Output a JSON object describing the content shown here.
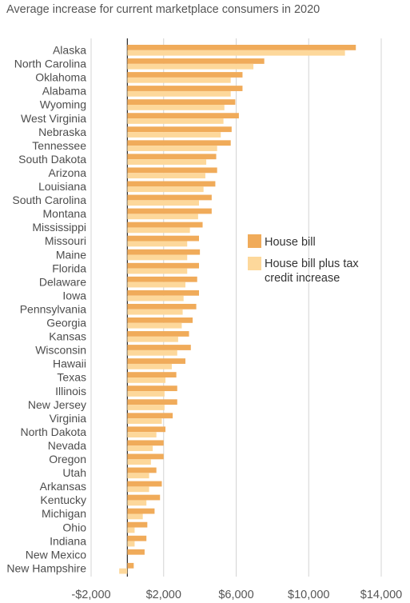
{
  "chart_data": {
    "type": "bar",
    "orientation": "horizontal",
    "title": "Average increase for current marketplace consumers in 2020",
    "xlabel": "",
    "ylabel": "",
    "xlim": [
      -2000,
      14000
    ],
    "xticks": [
      -2000,
      2000,
      6000,
      10000,
      14000
    ],
    "xtick_labels": [
      "-$2,000",
      "$2,000",
      "$6,000",
      "$10,000",
      "$14,000"
    ],
    "grid": "vertical gridlines",
    "legend_placement": "right-middle",
    "categories": [
      "Alaska",
      "North Carolina",
      "Oklahoma",
      "Alabama",
      "Wyoming",
      "West Virginia",
      "Nebraska",
      "Tennessee",
      "South Dakota",
      "Arizona",
      "Louisiana",
      "South Carolina",
      "Montana",
      "Mississippi",
      "Missouri",
      "Maine",
      "Florida",
      "Delaware",
      "Iowa",
      "Pennsylvania",
      "Georgia",
      "Kansas",
      "Wisconsin",
      "Hawaii",
      "Texas",
      "Illinois",
      "New Jersey",
      "Virginia",
      "North Dakota",
      "Nevada",
      "Oregon",
      "Utah",
      "Arkansas",
      "Kentucky",
      "Michigan",
      "Ohio",
      "Indiana",
      "New Mexico",
      "New Hampshire"
    ],
    "series": [
      {
        "name": "House bill",
        "color": "#f0ab5a",
        "values": [
          12600,
          7550,
          6350,
          6350,
          5950,
          6150,
          5750,
          5700,
          4900,
          4950,
          4850,
          4650,
          4650,
          4150,
          3950,
          4000,
          3950,
          3850,
          3950,
          3800,
          3600,
          3400,
          3500,
          3200,
          2700,
          2750,
          2750,
          2500,
          2100,
          2000,
          2000,
          1600,
          1900,
          1800,
          1500,
          1100,
          1050,
          950,
          350
        ]
      },
      {
        "name": "House bill plus tax credit increase",
        "color": "#fdd89b",
        "values": [
          12000,
          6950,
          5700,
          5700,
          5350,
          5300,
          5150,
          4950,
          4350,
          4300,
          4200,
          3950,
          3900,
          3450,
          3300,
          3300,
          3300,
          3200,
          3100,
          3050,
          3000,
          2800,
          2750,
          2450,
          2100,
          2050,
          2050,
          1900,
          1600,
          1400,
          1300,
          1200,
          1200,
          1050,
          850,
          400,
          400,
          0,
          -450
        ]
      }
    ]
  }
}
